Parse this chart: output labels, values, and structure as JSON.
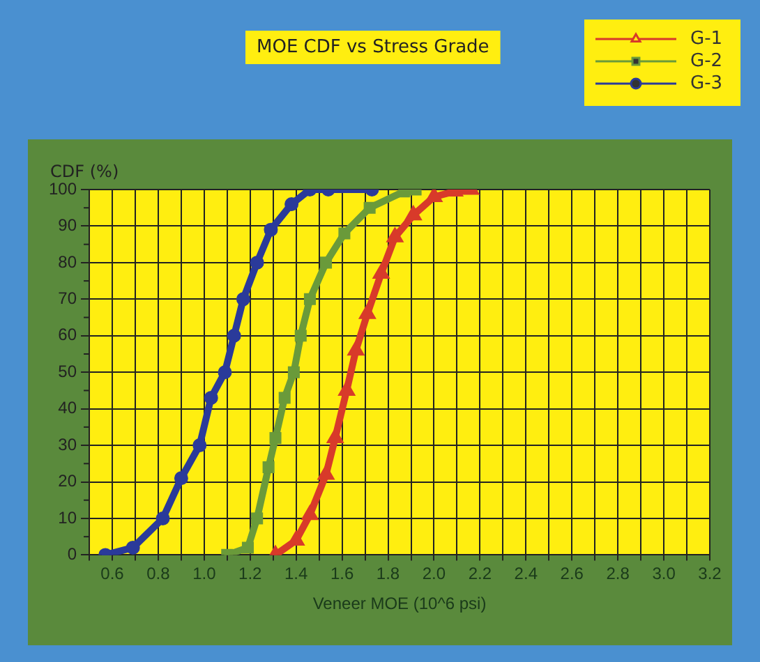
{
  "chart_data": {
    "type": "line",
    "title": "MOE CDF vs Stress Grade",
    "xlabel": "Veneer MOE (10^6 psi)",
    "ylabel": "CDF (%)",
    "xlim": [
      0.5,
      3.2
    ],
    "xticks": [
      {
        "value": 0.5,
        "label": null
      },
      0.6,
      {
        "value": 0.7,
        "label": null
      },
      0.8,
      {
        "value": 0.9,
        "label": null
      },
      {
        "value": 1.0,
        "label": "1.0"
      },
      {
        "value": 1.1,
        "label": null
      },
      1.2,
      {
        "value": 1.3,
        "label": null
      },
      1.4,
      {
        "value": 1.5,
        "label": null
      },
      1.6,
      {
        "value": 1.7,
        "label": null
      },
      1.8,
      {
        "value": 1.9,
        "label": null
      },
      {
        "value": 2.0,
        "label": "2.0"
      },
      {
        "value": 2.1,
        "label": null
      },
      2.2,
      {
        "value": 2.3,
        "label": null
      },
      2.4,
      {
        "value": 2.5,
        "label": null
      },
      2.6,
      {
        "value": 2.7,
        "label": null
      },
      2.8,
      {
        "value": 2.9,
        "label": null
      },
      {
        "value": 3.0,
        "label": "3.0"
      },
      {
        "value": 3.1,
        "label": null
      },
      3.2
    ],
    "ylim": [
      0,
      100
    ],
    "yticks": [
      0,
      10,
      20,
      30,
      40,
      50,
      60,
      70,
      80,
      90,
      100
    ],
    "grid": true,
    "legend": "top right",
    "line_style": "solid",
    "series": [
      {
        "name": "G-1",
        "color": "#d83a2a",
        "marker": "triangle",
        "x": [
          1.31,
          1.4,
          1.46,
          1.53,
          1.57,
          1.62,
          1.66,
          1.71,
          1.77,
          1.83,
          1.91,
          2.0,
          2.09,
          2.16
        ],
        "values": [
          0,
          4,
          11,
          22,
          32,
          45,
          56,
          66,
          77,
          87,
          93,
          98,
          99.5,
          100
        ]
      },
      {
        "name": "G-2",
        "color": "#6a9a3a",
        "marker": "square",
        "x": [
          1.1,
          1.19,
          1.23,
          1.28,
          1.31,
          1.35,
          1.39,
          1.42,
          1.46,
          1.53,
          1.61,
          1.72,
          1.87,
          1.92
        ],
        "values": [
          0,
          2,
          10,
          24,
          32,
          43,
          50,
          60,
          70,
          80,
          88,
          95,
          99.5,
          100
        ]
      },
      {
        "name": "G-3",
        "color": "#2a3a9a",
        "marker": "circle",
        "x": [
          0.57,
          0.69,
          0.82,
          0.9,
          0.98,
          1.03,
          1.09,
          1.13,
          1.17,
          1.23,
          1.29,
          1.38,
          1.46,
          1.54,
          1.73
        ],
        "values": [
          0,
          2,
          10,
          21,
          30,
          43,
          50,
          60,
          70,
          80,
          89,
          96,
          100,
          100,
          100
        ]
      }
    ]
  }
}
